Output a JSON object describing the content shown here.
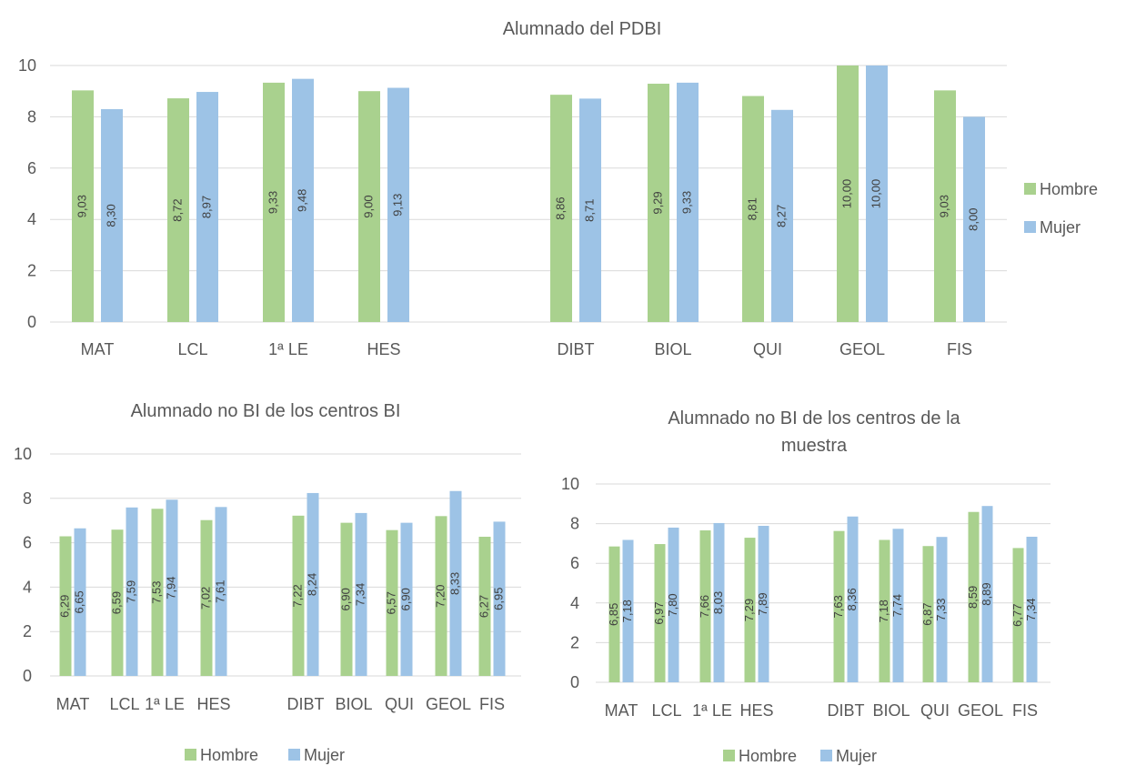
{
  "chart_data": [
    {
      "type": "bar",
      "title": "Alumnado del PDBI",
      "categories": [
        "MAT",
        "LCL",
        "1ª LE",
        "HES",
        "",
        "DIBT",
        "BIOL",
        "QUI",
        "GEOL",
        "FIS"
      ],
      "series": [
        {
          "name": "Hombre",
          "values": [
            9.03,
            8.72,
            9.33,
            9.0,
            null,
            8.86,
            9.29,
            8.81,
            10.0,
            9.03
          ],
          "labels": [
            "9,03",
            "8,72",
            "9,33",
            "9,00",
            "",
            "8,86",
            "9,29",
            "8,81",
            "10,00",
            "9,03"
          ]
        },
        {
          "name": "Mujer",
          "values": [
            8.3,
            8.97,
            9.48,
            9.13,
            null,
            8.71,
            9.33,
            8.27,
            10.0,
            8.0
          ],
          "labels": [
            "8,30",
            "8,97",
            "9,48",
            "9,13",
            "",
            "8,71",
            "9,33",
            "8,27",
            "10,00",
            "8,00"
          ]
        }
      ],
      "ylim": [
        0,
        10
      ],
      "yticks": [
        0,
        2,
        4,
        6,
        8,
        10
      ],
      "grid": true,
      "legend_position": "right"
    },
    {
      "type": "bar",
      "title": "Alumnado no BI de los centros BI",
      "categories": [
        "MAT",
        "LCL",
        "1ª LE",
        "HES",
        "",
        "DIBT",
        "BIOL",
        "QUI",
        "GEOL",
        "FIS"
      ],
      "series": [
        {
          "name": "Hombre",
          "values": [
            6.29,
            6.59,
            7.53,
            7.02,
            null,
            7.22,
            6.9,
            6.57,
            7.2,
            6.27
          ],
          "labels": [
            "6,29",
            "6,59",
            "7,53",
            "7,02",
            "",
            "7,22",
            "6,90",
            "6,57",
            "7,20",
            "6,27"
          ]
        },
        {
          "name": "Mujer",
          "values": [
            6.65,
            7.59,
            7.94,
            7.61,
            null,
            8.24,
            7.34,
            6.9,
            8.33,
            6.95
          ],
          "labels": [
            "6,65",
            "7,59",
            "7,94",
            "7,61",
            "",
            "8,24",
            "7,34",
            "6,90",
            "8,33",
            "6,95"
          ]
        }
      ],
      "ylim": [
        0,
        10
      ],
      "yticks": [
        0,
        2,
        4,
        6,
        8,
        10
      ],
      "grid": true,
      "legend_position": "bottom"
    },
    {
      "type": "bar",
      "title": "Alumnado no BI de los centros de la muestra",
      "categories": [
        "MAT",
        "LCL",
        "1ª LE",
        "HES",
        "",
        "DIBT",
        "BIOL",
        "QUI",
        "GEOL",
        "FIS"
      ],
      "series": [
        {
          "name": "Hombre",
          "values": [
            6.85,
            6.97,
            7.66,
            7.29,
            null,
            7.63,
            7.18,
            6.87,
            8.59,
            6.77
          ],
          "labels": [
            "6,85",
            "6,97",
            "7,66",
            "7,29",
            "",
            "7,63",
            "7,18",
            "6,87",
            "8,59",
            "6,77"
          ]
        },
        {
          "name": "Mujer",
          "values": [
            7.18,
            7.8,
            8.03,
            7.89,
            null,
            8.36,
            7.74,
            7.33,
            8.89,
            7.34
          ],
          "labels": [
            "7,18",
            "7,80",
            "8,03",
            "7,89",
            "",
            "8,36",
            "7,74",
            "7,33",
            "8,89",
            "7,34"
          ]
        }
      ],
      "ylim": [
        0,
        10
      ],
      "yticks": [
        0,
        2,
        4,
        6,
        8,
        10
      ],
      "grid": true,
      "legend_position": "bottom"
    }
  ],
  "colors": {
    "hombre": "#a9d18e",
    "mujer": "#9dc3e6"
  },
  "charts": [
    {
      "title_lines": [
        "Alumnado del PDBI"
      ],
      "legend": [
        "Hombre",
        "Mujer"
      ]
    },
    {
      "title_lines": [
        "Alumnado no BI de los centros BI"
      ],
      "legend": [
        "Hombre",
        "Mujer"
      ]
    },
    {
      "title_lines": [
        "Alumnado no BI de los centros de la",
        "muestra"
      ],
      "legend": [
        "Hombre",
        "Mujer"
      ]
    }
  ]
}
